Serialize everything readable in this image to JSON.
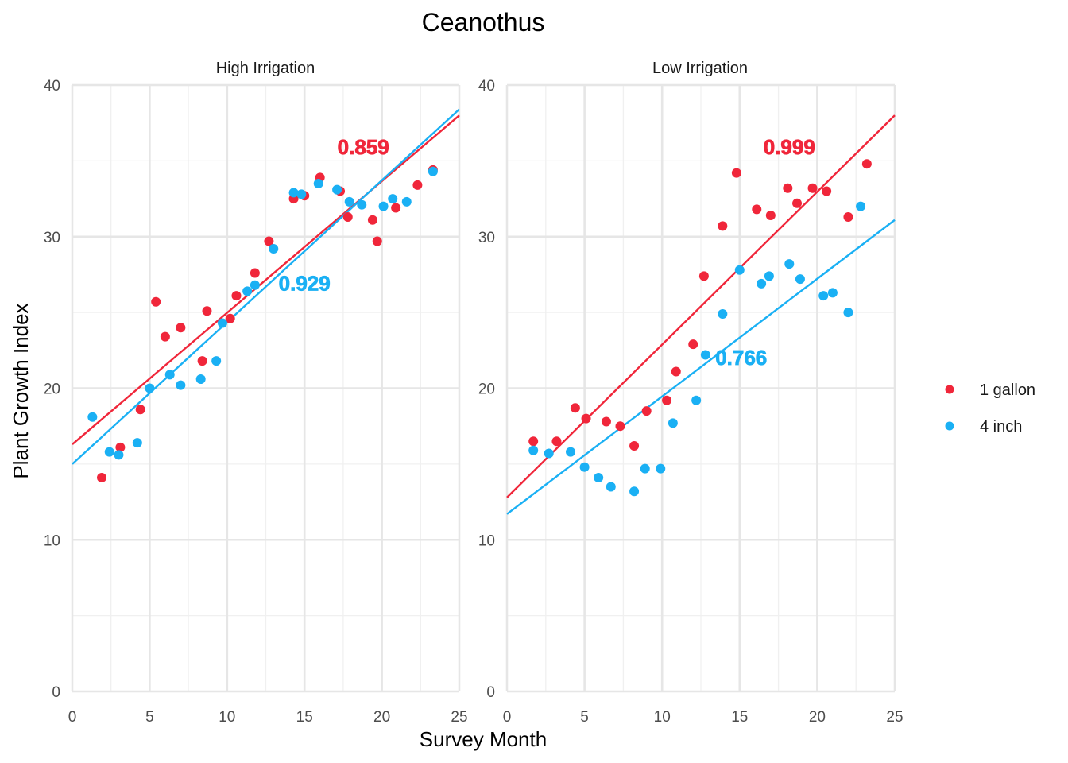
{
  "chart_data": {
    "type": "scatter",
    "title": "Ceanothus",
    "xlabel": "Survey Month",
    "ylabel": "Plant Growth Index",
    "xlim": [
      0,
      25
    ],
    "ylim": [
      0,
      40
    ],
    "xticks": [
      "0",
      "5",
      "10",
      "15",
      "20",
      "25"
    ],
    "yticks": [
      "0",
      "10",
      "20",
      "30",
      "40"
    ],
    "grid": true,
    "legend_position": "right",
    "colors": {
      "1 gallon": "#f0263a",
      "4 inch": "#1ab0f4"
    },
    "legend": [
      {
        "name": "1 gallon",
        "color": "#f0263a"
      },
      {
        "name": "4 inch",
        "color": "#1ab0f4"
      }
    ],
    "panels": [
      {
        "strip": "High Irrigation",
        "series": [
          {
            "name": "1 gallon",
            "color": "#f0263a",
            "fit_line": {
              "x": [
                0,
                25
              ],
              "y": [
                16.3,
                38.0
              ]
            },
            "label": {
              "text": "0.859",
              "x": 18.8,
              "y": 35.8
            },
            "points": [
              [
                1.9,
                14.1
              ],
              [
                3.1,
                16.1
              ],
              [
                4.4,
                18.6
              ],
              [
                5.4,
                25.7
              ],
              [
                6.0,
                23.4
              ],
              [
                7.0,
                24.0
              ],
              [
                8.4,
                21.8
              ],
              [
                8.7,
                25.1
              ],
              [
                10.2,
                24.6
              ],
              [
                10.6,
                26.1
              ],
              [
                11.8,
                27.6
              ],
              [
                12.7,
                29.7
              ],
              [
                14.3,
                32.5
              ],
              [
                15.0,
                32.7
              ],
              [
                16.0,
                33.9
              ],
              [
                17.3,
                33.0
              ],
              [
                17.8,
                31.3
              ],
              [
                19.4,
                31.1
              ],
              [
                19.7,
                29.7
              ],
              [
                20.9,
                31.9
              ],
              [
                22.3,
                33.4
              ],
              [
                23.3,
                34.4
              ]
            ]
          },
          {
            "name": "4 inch",
            "color": "#1ab0f4",
            "fit_line": {
              "x": [
                0,
                25
              ],
              "y": [
                15.0,
                38.4
              ]
            },
            "label": {
              "text": "0.929",
              "x": 15.0,
              "y": 26.8
            },
            "points": [
              [
                1.3,
                18.1
              ],
              [
                2.4,
                15.8
              ],
              [
                3.0,
                15.6
              ],
              [
                4.2,
                16.4
              ],
              [
                5.0,
                20.0
              ],
              [
                6.3,
                20.9
              ],
              [
                7.0,
                20.2
              ],
              [
                8.3,
                20.6
              ],
              [
                9.3,
                21.8
              ],
              [
                9.7,
                24.3
              ],
              [
                11.3,
                26.4
              ],
              [
                11.8,
                26.8
              ],
              [
                13.0,
                29.2
              ],
              [
                14.3,
                32.9
              ],
              [
                14.8,
                32.8
              ],
              [
                15.9,
                33.5
              ],
              [
                17.1,
                33.1
              ],
              [
                17.9,
                32.3
              ],
              [
                18.7,
                32.1
              ],
              [
                20.1,
                32.0
              ],
              [
                20.7,
                32.5
              ],
              [
                21.6,
                32.3
              ],
              [
                23.3,
                34.3
              ]
            ]
          }
        ]
      },
      {
        "strip": "Low Irrigation",
        "series": [
          {
            "name": "1 gallon",
            "color": "#f0263a",
            "fit_line": {
              "x": [
                0,
                25
              ],
              "y": [
                12.8,
                38.0
              ]
            },
            "label": {
              "text": "0.999",
              "x": 18.2,
              "y": 35.8
            },
            "points": [
              [
                1.7,
                16.5
              ],
              [
                3.2,
                16.5
              ],
              [
                4.4,
                18.7
              ],
              [
                5.1,
                18.0
              ],
              [
                6.4,
                17.8
              ],
              [
                7.3,
                17.5
              ],
              [
                8.2,
                16.2
              ],
              [
                9.0,
                18.5
              ],
              [
                10.3,
                19.2
              ],
              [
                10.9,
                21.1
              ],
              [
                12.0,
                22.9
              ],
              [
                12.7,
                27.4
              ],
              [
                13.9,
                30.7
              ],
              [
                14.8,
                34.2
              ],
              [
                16.1,
                31.8
              ],
              [
                17.0,
                31.4
              ],
              [
                18.1,
                33.2
              ],
              [
                18.7,
                32.2
              ],
              [
                19.7,
                33.2
              ],
              [
                20.6,
                33.0
              ],
              [
                22.0,
                31.3
              ],
              [
                23.2,
                34.8
              ]
            ]
          },
          {
            "name": "4 inch",
            "color": "#1ab0f4",
            "fit_line": {
              "x": [
                0,
                25
              ],
              "y": [
                11.7,
                31.1
              ]
            },
            "label": {
              "text": "0.766",
              "x": 15.1,
              "y": 21.9
            },
            "points": [
              [
                1.7,
                15.9
              ],
              [
                2.7,
                15.7
              ],
              [
                4.1,
                15.8
              ],
              [
                5.0,
                14.8
              ],
              [
                5.9,
                14.1
              ],
              [
                6.7,
                13.5
              ],
              [
                8.2,
                13.2
              ],
              [
                8.9,
                14.7
              ],
              [
                9.9,
                14.7
              ],
              [
                10.7,
                17.7
              ],
              [
                12.2,
                19.2
              ],
              [
                12.8,
                22.2
              ],
              [
                13.9,
                24.9
              ],
              [
                15.0,
                27.8
              ],
              [
                16.4,
                26.9
              ],
              [
                16.9,
                27.4
              ],
              [
                18.2,
                28.2
              ],
              [
                18.9,
                27.2
              ],
              [
                20.4,
                26.1
              ],
              [
                21.0,
                26.3
              ],
              [
                22.0,
                25.0
              ],
              [
                22.8,
                32.0
              ]
            ]
          }
        ]
      }
    ]
  }
}
